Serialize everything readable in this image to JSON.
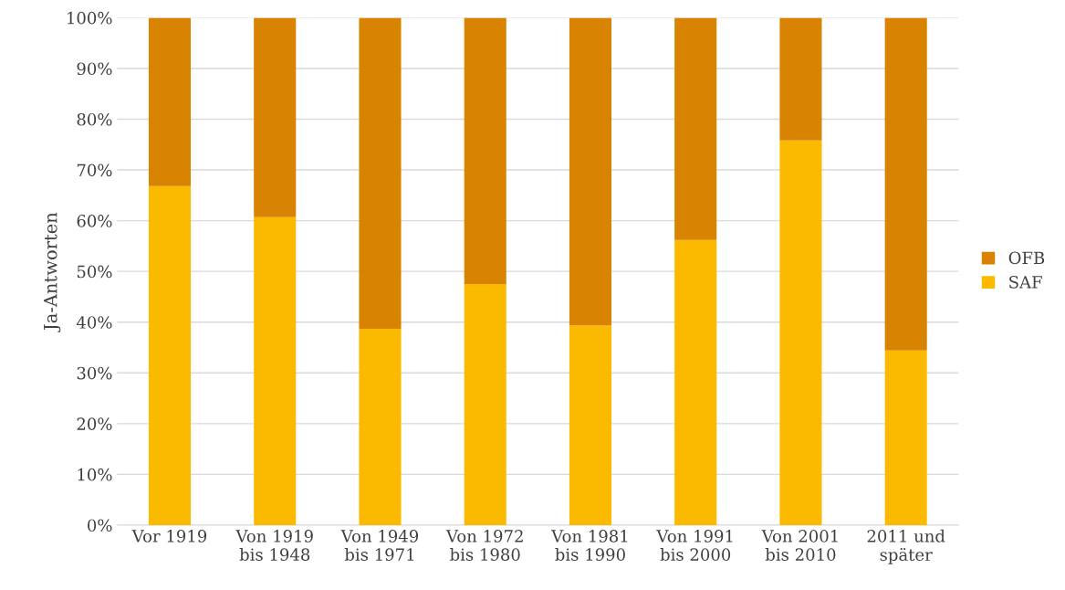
{
  "chart_data": {
    "type": "bar",
    "stacked": true,
    "ylabel": "Ja-Antworten",
    "categories": [
      "Vor 1919",
      "Von 1919\nbis 1948",
      "Von 1949\nbis 1971",
      "Von 1972\nbis 1980",
      "Von 1981\nbis 1990",
      "Von 1991\nbis 2000",
      "Von 2001\nbis 2010",
      "2011 und\nspäter"
    ],
    "series": [
      {
        "name": "SAF",
        "color": "#fbba00",
        "values": [
          66.8,
          60.7,
          38.7,
          47.5,
          39.3,
          56.2,
          75.8,
          34.4
        ]
      },
      {
        "name": "OFB",
        "color": "#d98302",
        "values": [
          33.2,
          39.3,
          61.3,
          52.5,
          60.7,
          43.8,
          24.2,
          65.6
        ]
      }
    ],
    "ylim": [
      0,
      100
    ],
    "yticks": [
      {
        "value": 0,
        "label": "0%"
      },
      {
        "value": 10,
        "label": "10%"
      },
      {
        "value": 20,
        "label": "20%"
      },
      {
        "value": 30,
        "label": "30%"
      },
      {
        "value": 40,
        "label": "40%"
      },
      {
        "value": 50,
        "label": "50%"
      },
      {
        "value": 60,
        "label": "60%"
      },
      {
        "value": 70,
        "label": "70%"
      },
      {
        "value": 80,
        "label": "80%"
      },
      {
        "value": 90,
        "label": "90%"
      },
      {
        "value": 100,
        "label": "100%"
      }
    ],
    "grid": "y",
    "legend": "right"
  }
}
